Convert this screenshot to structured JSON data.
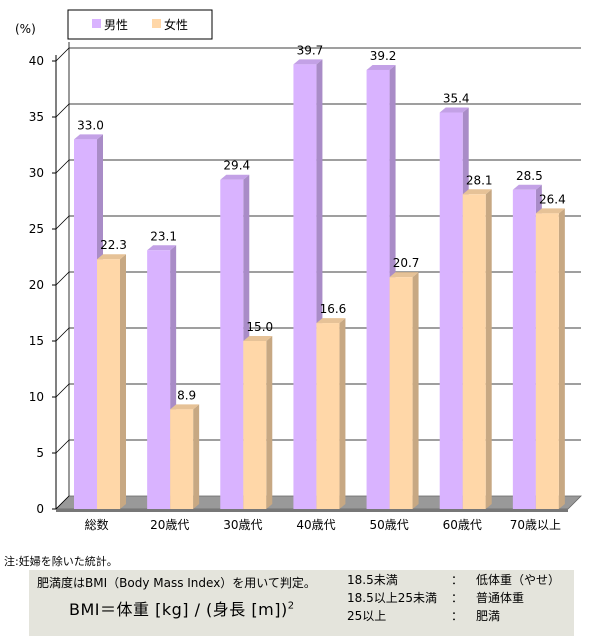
{
  "chart_data": {
    "type": "bar",
    "categories": [
      "総数",
      "20歳代",
      "30歳代",
      "40歳代",
      "50歳代",
      "60歳代",
      "70歳以上"
    ],
    "series": [
      {
        "name": "男性",
        "values": [
          33.0,
          23.1,
          29.4,
          39.7,
          39.2,
          35.4,
          28.5
        ],
        "color": "#d9b3ff"
      },
      {
        "name": "女性",
        "values": [
          22.3,
          8.9,
          15.0,
          16.6,
          20.7,
          28.1,
          26.4
        ],
        "color": "#ffd7a8"
      }
    ],
    "value_labels": {
      "男性": [
        "33.0",
        "23.1",
        "29.4",
        "39.7",
        "39.2",
        "35.4",
        "28.5"
      ],
      "女性": [
        "22.3",
        "8.9",
        "15.0",
        "16.6",
        "20.7",
        "28.1",
        "26.4"
      ]
    },
    "ylabel": "(%)",
    "ylim": [
      0,
      40
    ],
    "yticks": [
      0,
      5,
      10,
      15,
      20,
      25,
      30,
      35,
      40
    ],
    "grid": true,
    "legend": "top-left",
    "style": "3d-bar"
  },
  "note": "注:妊婦を除いた統計。",
  "bmi": {
    "heading": "肥満度はBMI（Body Mass Index）を用いて判定。",
    "formula": "BMI＝体重 [kg] / (身長 [m])",
    "formula_exp": "2",
    "rows": [
      {
        "range": "18.5未満",
        "colon": "：",
        "label": "低体重（やせ）"
      },
      {
        "range": "18.5以上25未満",
        "colon": "：",
        "label": "普通体重"
      },
      {
        "range": "25以上",
        "colon": "：",
        "label": "肥満"
      }
    ]
  }
}
